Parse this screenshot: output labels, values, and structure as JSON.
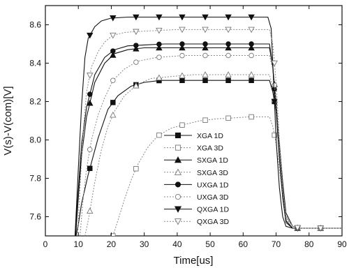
{
  "chart_data": {
    "type": "line",
    "xlabel": "Time[us]",
    "ylabel": "V(s)-V(com)[V]",
    "xlim": [
      0,
      90
    ],
    "ylim": [
      7.5,
      8.7
    ],
    "xticks": [
      "0",
      "10",
      "20",
      "30",
      "40",
      "50",
      "60",
      "70",
      "80",
      "90"
    ],
    "yticks": [
      "7.6",
      "7.8",
      "8.0",
      "8.2",
      "8.4",
      "8.6"
    ],
    "grid": false,
    "legend_position": "center-right",
    "series": [
      {
        "name": "XGA 1D",
        "marker": "square-filled",
        "dash": "solid",
        "x": [
          9.3,
          10,
          11,
          13,
          16,
          19,
          22,
          26,
          30,
          35,
          45,
          55,
          65,
          68,
          69,
          70,
          71,
          72,
          73,
          75,
          77,
          80,
          85,
          90
        ],
        "y": [
          7.5,
          7.56,
          7.67,
          7.82,
          8.01,
          8.16,
          8.23,
          8.28,
          8.3,
          8.31,
          8.31,
          8.31,
          8.31,
          8.31,
          8.25,
          8.15,
          7.98,
          7.78,
          7.62,
          7.55,
          7.54,
          7.54,
          7.54,
          7.54
        ]
      },
      {
        "name": "XGA 3D",
        "marker": "square-open",
        "dash": "dotted",
        "x": [
          20.5,
          22,
          24,
          26,
          28,
          31,
          34,
          38,
          42,
          47,
          52,
          57,
          62,
          66,
          68,
          69,
          70,
          71,
          72,
          73,
          75,
          77,
          80,
          85,
          90
        ],
        "y": [
          7.5,
          7.58,
          7.69,
          7.79,
          7.87,
          7.96,
          8.02,
          8.06,
          8.08,
          8.1,
          8.11,
          8.115,
          8.12,
          8.12,
          8.12,
          8.07,
          7.98,
          7.85,
          7.72,
          7.61,
          7.55,
          7.54,
          7.54,
          7.54,
          7.54
        ]
      },
      {
        "name": "SXGA 1D",
        "marker": "triangle-filled",
        "dash": "solid",
        "x": [
          9.2,
          10,
          11,
          12.5,
          15,
          18,
          21,
          25,
          30,
          36,
          45,
          55,
          65,
          68,
          69,
          70,
          71,
          72,
          73,
          75,
          77,
          80,
          85,
          90
        ],
        "y": [
          7.5,
          7.7,
          7.92,
          8.12,
          8.3,
          8.4,
          8.45,
          8.47,
          8.48,
          8.48,
          8.48,
          8.48,
          8.48,
          8.48,
          8.38,
          8.2,
          7.95,
          7.72,
          7.58,
          7.54,
          7.54,
          7.54,
          7.54,
          7.54
        ]
      },
      {
        "name": "SXGA 3D",
        "marker": "triangle-open",
        "dash": "dotted",
        "x": [
          12,
          13,
          14,
          15,
          17,
          19,
          21,
          24,
          28,
          32,
          38,
          45,
          55,
          65,
          68,
          69,
          70,
          71,
          72,
          73,
          75,
          77,
          80,
          85,
          90
        ],
        "y": [
          7.5,
          7.58,
          7.68,
          7.78,
          7.95,
          8.07,
          8.15,
          8.23,
          8.29,
          8.32,
          8.33,
          8.34,
          8.34,
          8.34,
          8.34,
          8.27,
          8.15,
          7.95,
          7.74,
          7.6,
          7.55,
          7.54,
          7.54,
          7.54,
          7.54
        ]
      },
      {
        "name": "UXGA 1D",
        "marker": "circle-filled",
        "dash": "solid",
        "x": [
          9,
          10,
          11,
          12.5,
          15,
          18,
          21,
          25,
          30,
          36,
          45,
          55,
          65,
          68,
          69,
          70,
          71,
          72,
          73,
          75,
          77,
          80,
          85,
          90
        ],
        "y": [
          7.5,
          7.74,
          7.98,
          8.17,
          8.34,
          8.43,
          8.47,
          8.49,
          8.495,
          8.5,
          8.5,
          8.5,
          8.5,
          8.5,
          8.38,
          8.15,
          7.9,
          7.7,
          7.57,
          7.54,
          7.54,
          7.54,
          7.54,
          7.54
        ]
      },
      {
        "name": "UXGA 3D",
        "marker": "circle-open",
        "dash": "dotted",
        "x": [
          10.5,
          11.5,
          12.5,
          14,
          16,
          18,
          20.5,
          24,
          28,
          34,
          42,
          50,
          60,
          68,
          69,
          70,
          71,
          72,
          73,
          75,
          77,
          80,
          85,
          90
        ],
        "y": [
          7.5,
          7.7,
          7.85,
          8.0,
          8.13,
          8.22,
          8.31,
          8.37,
          8.41,
          8.43,
          8.44,
          8.44,
          8.44,
          8.44,
          8.37,
          8.2,
          7.95,
          7.73,
          7.59,
          7.55,
          7.54,
          7.54,
          7.54,
          7.54
        ]
      },
      {
        "name": "QXGA 1D",
        "marker": "triangle-down-filled",
        "dash": "solid",
        "x": [
          9,
          10,
          11,
          12,
          13,
          15,
          17,
          20,
          25,
          30,
          40,
          50,
          60,
          67.5,
          68.5,
          69,
          70,
          71,
          72,
          73,
          75,
          77,
          80,
          85,
          90
        ],
        "y": [
          7.5,
          7.85,
          8.18,
          8.43,
          8.53,
          8.59,
          8.62,
          8.635,
          8.64,
          8.64,
          8.64,
          8.64,
          8.64,
          8.64,
          8.58,
          8.4,
          8.0,
          7.75,
          7.6,
          7.55,
          7.54,
          7.54,
          7.54,
          7.54,
          7.54
        ]
      },
      {
        "name": "QXGA 3D",
        "marker": "triangle-down-open",
        "dash": "dotted",
        "x": [
          9.8,
          10.5,
          11.5,
          12.5,
          14,
          16,
          18,
          20.5,
          24,
          28,
          34,
          40,
          50,
          60,
          68,
          69,
          70,
          71,
          72,
          73,
          75,
          77,
          80,
          85,
          90
        ],
        "y": [
          7.5,
          7.75,
          8.05,
          8.25,
          8.38,
          8.46,
          8.51,
          8.545,
          8.56,
          8.565,
          8.57,
          8.575,
          8.575,
          8.575,
          8.575,
          8.5,
          8.3,
          8.0,
          7.75,
          7.6,
          7.55,
          7.54,
          7.54,
          7.54,
          7.54
        ]
      }
    ]
  }
}
